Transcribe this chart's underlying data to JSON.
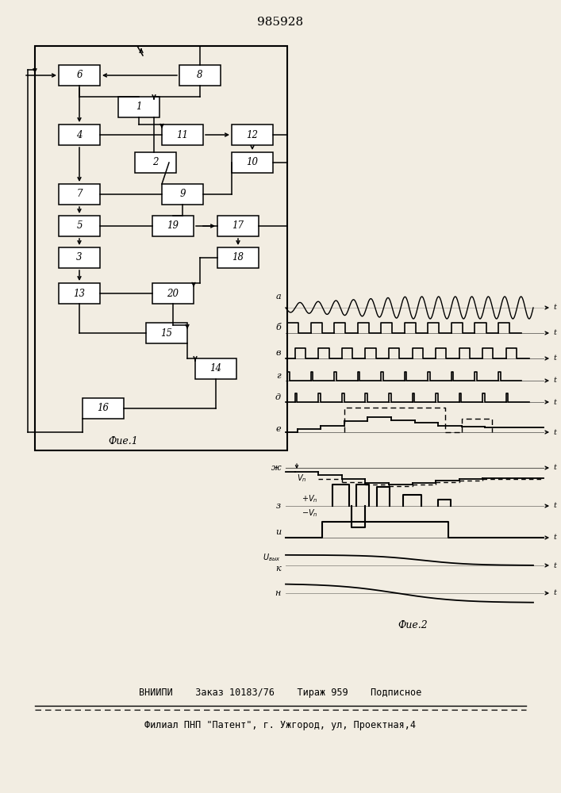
{
  "title": "985928",
  "fig2_label": "Фие.2",
  "fig1_label": "Фие.1",
  "footer_line1": "ВНИИПИ    Заказ 10183/76    Тираж 959    Подписное",
  "footer_line2": "Филиал ПНП \"Патент\", г. Ужгород, ул, Проектная,4",
  "bg_color": "#f2ede2"
}
